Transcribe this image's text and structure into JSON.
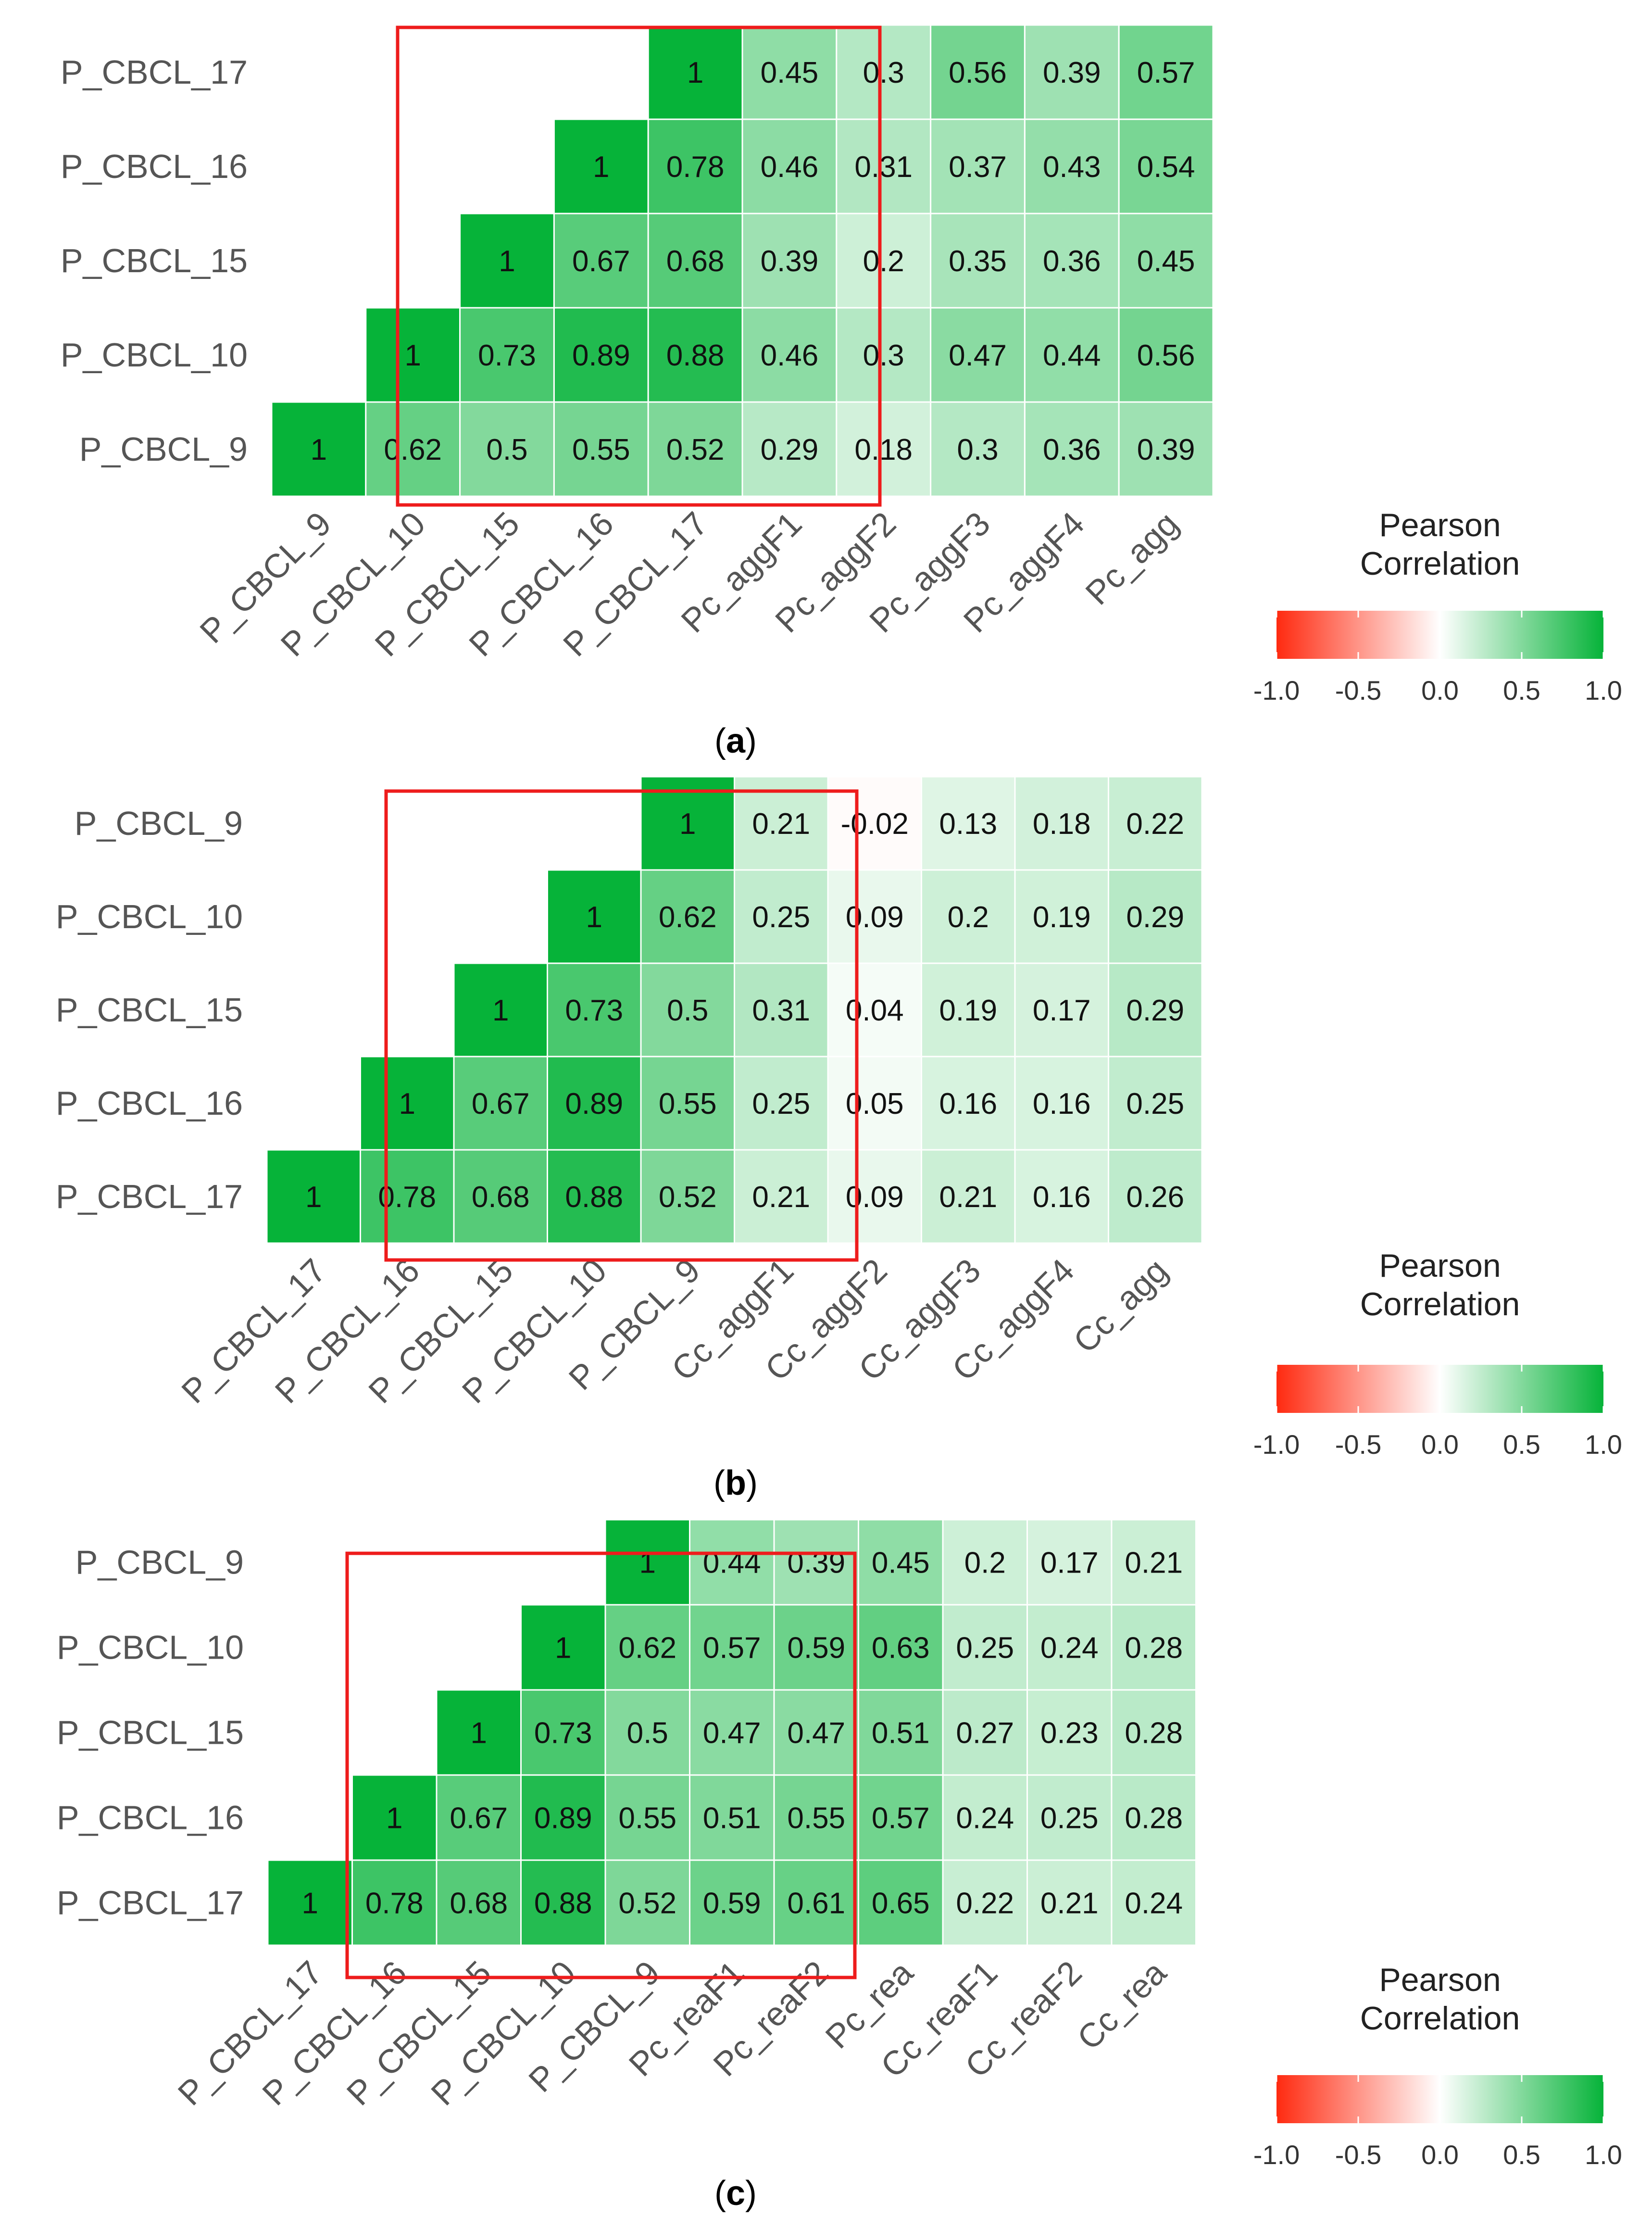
{
  "colors": {
    "negative": "#ff2a10",
    "neutral": "#ffffff",
    "positive": "#06b339",
    "highlight_box": "#ee1c1c",
    "label_text": "#555555",
    "value_text": "#111111"
  },
  "legend": {
    "title_line1": "Pearson",
    "title_line2": "Correlation",
    "ticks": [
      "-1.0",
      "-0.5",
      "0.0",
      "0.5",
      "1.0"
    ]
  },
  "chart_data": [
    {
      "type": "heatmap",
      "caption": "(a)",
      "caption_letter": "a",
      "value_range": [
        -1,
        1
      ],
      "rows": [
        "P_CBCL_17",
        "P_CBCL_16",
        "P_CBCL_15",
        "P_CBCL_10",
        "P_CBCL_9"
      ],
      "columns": [
        "P_CBCL_9",
        "P_CBCL_10",
        "P_CBCL_15",
        "P_CBCL_16",
        "P_CBCL_17",
        "Pc_aggF1",
        "Pc_aggF2",
        "Pc_aggF3",
        "Pc_aggF4",
        "Pc_agg"
      ],
      "values": [
        [
          null,
          null,
          null,
          null,
          1,
          0.45,
          0.3,
          0.56,
          0.39,
          0.57
        ],
        [
          null,
          null,
          null,
          1,
          0.78,
          0.46,
          0.31,
          0.37,
          0.43,
          0.54
        ],
        [
          null,
          null,
          1,
          0.67,
          0.68,
          0.39,
          0.2,
          0.35,
          0.36,
          0.45
        ],
        [
          null,
          1,
          0.73,
          0.89,
          0.88,
          0.46,
          0.3,
          0.47,
          0.44,
          0.56
        ],
        [
          1,
          0.62,
          0.5,
          0.55,
          0.52,
          0.29,
          0.18,
          0.3,
          0.36,
          0.39
        ]
      ],
      "highlight_columns": [
        "P_CBCL_10",
        "Pc_aggF2"
      ],
      "legend_title": [
        "Pearson",
        "Correlation"
      ]
    },
    {
      "type": "heatmap",
      "caption": "(b)",
      "caption_letter": "b",
      "value_range": [
        -1,
        1
      ],
      "rows": [
        "P_CBCL_9",
        "P_CBCL_10",
        "P_CBCL_15",
        "P_CBCL_16",
        "P_CBCL_17"
      ],
      "columns": [
        "P_CBCL_17",
        "P_CBCL_16",
        "P_CBCL_15",
        "P_CBCL_10",
        "P_CBCL_9",
        "Cc_aggF1",
        "Cc_aggF2",
        "Cc_aggF3",
        "Cc_aggF4",
        "Cc_agg"
      ],
      "values": [
        [
          null,
          null,
          null,
          null,
          1,
          0.21,
          -0.02,
          0.13,
          0.18,
          0.22
        ],
        [
          null,
          null,
          null,
          1,
          0.62,
          0.25,
          0.09,
          0.2,
          0.19,
          0.29
        ],
        [
          null,
          null,
          1,
          0.73,
          0.5,
          0.31,
          0.04,
          0.19,
          0.17,
          0.29
        ],
        [
          null,
          1,
          0.67,
          0.89,
          0.55,
          0.25,
          0.05,
          0.16,
          0.16,
          0.25
        ],
        [
          1,
          0.78,
          0.68,
          0.88,
          0.52,
          0.21,
          0.09,
          0.21,
          0.16,
          0.26
        ]
      ],
      "highlight_columns": [
        "P_CBCL_16",
        "Cc_aggF2"
      ],
      "legend_title": [
        "Pearson",
        "Correlation"
      ]
    },
    {
      "type": "heatmap",
      "caption": "(c)",
      "caption_letter": "c",
      "value_range": [
        -1,
        1
      ],
      "rows": [
        "P_CBCL_9",
        "P_CBCL_10",
        "P_CBCL_15",
        "P_CBCL_16",
        "P_CBCL_17"
      ],
      "columns": [
        "P_CBCL_17",
        "P_CBCL_16",
        "P_CBCL_15",
        "P_CBCL_10",
        "P_CBCL_9",
        "Pc_reaF1",
        "Pc_reaF2",
        "Pc_rea",
        "Cc_reaF1",
        "Cc_reaF2",
        "Cc_rea"
      ],
      "values": [
        [
          null,
          null,
          null,
          null,
          1,
          0.44,
          0.39,
          0.45,
          0.2,
          0.17,
          0.21
        ],
        [
          null,
          null,
          null,
          1,
          0.62,
          0.57,
          0.59,
          0.63,
          0.25,
          0.24,
          0.28
        ],
        [
          null,
          null,
          1,
          0.73,
          0.5,
          0.47,
          0.47,
          0.51,
          0.27,
          0.23,
          0.28
        ],
        [
          null,
          1,
          0.67,
          0.89,
          0.55,
          0.51,
          0.55,
          0.57,
          0.24,
          0.25,
          0.28
        ],
        [
          1,
          0.78,
          0.68,
          0.88,
          0.52,
          0.59,
          0.61,
          0.65,
          0.22,
          0.21,
          0.24
        ]
      ],
      "highlight_columns": [
        "P_CBCL_16",
        "Pc_reaF2"
      ],
      "legend_title": [
        "Pearson",
        "Correlation"
      ]
    }
  ]
}
